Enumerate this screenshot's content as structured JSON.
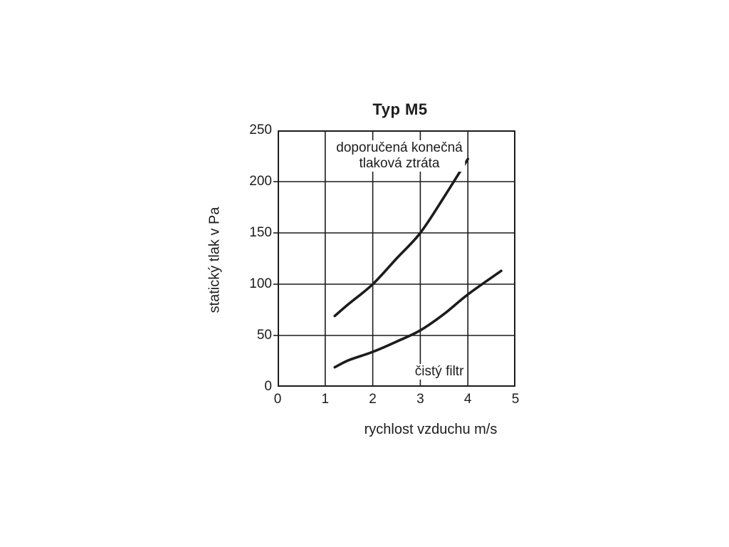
{
  "page": {
    "background": "#ffffff",
    "ink_color": "#1c1c1c"
  },
  "chart_data": {
    "type": "line",
    "title": "Typ M5",
    "xlabel": "rychlost vzduchu m/s",
    "ylabel": "statický tlak v Pa",
    "xlim": [
      0,
      5
    ],
    "ylim": [
      0,
      250
    ],
    "xticks": [
      0,
      1,
      2,
      3,
      4,
      5
    ],
    "yticks": [
      0,
      50,
      100,
      150,
      200,
      250
    ],
    "grid": true,
    "legend_position": "inline-annotations",
    "line_color": "#1c1c1c",
    "grid_color": "#1c1c1c",
    "series": [
      {
        "name": "doporučená konečná tlaková ztráta",
        "points": [
          [
            1.2,
            69
          ],
          [
            1.5,
            81
          ],
          [
            2.0,
            100
          ],
          [
            2.5,
            125
          ],
          [
            3.0,
            150
          ],
          [
            3.5,
            185
          ],
          [
            4.0,
            222
          ]
        ]
      },
      {
        "name": "čistý filtr",
        "points": [
          [
            1.2,
            19
          ],
          [
            1.5,
            26
          ],
          [
            2.0,
            34
          ],
          [
            2.5,
            44
          ],
          [
            3.0,
            55
          ],
          [
            3.5,
            71
          ],
          [
            4.0,
            90
          ],
          [
            4.7,
            113
          ]
        ]
      }
    ],
    "annotations": [
      {
        "lines": [
          "doporučená konečná",
          "tlaková ztráta"
        ],
        "x": 2.56,
        "y_top": 240
      },
      {
        "lines": [
          "čistý filtr"
        ],
        "x": 3.4,
        "y_top": 22
      }
    ]
  }
}
